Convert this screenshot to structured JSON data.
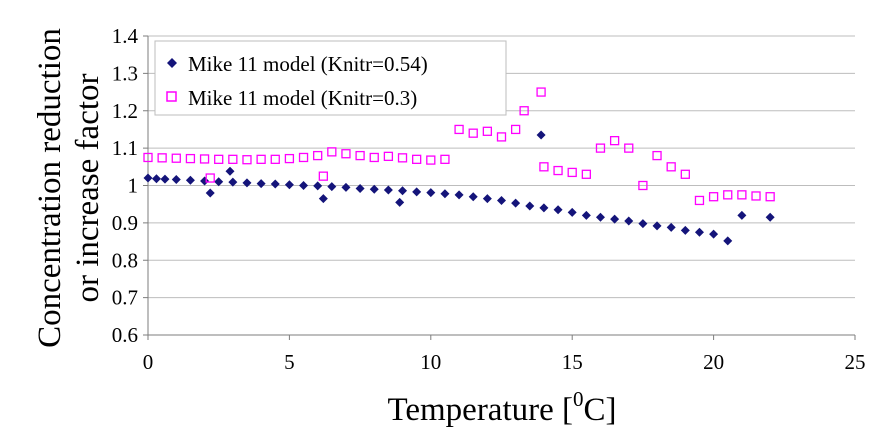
{
  "chart_data": {
    "type": "scatter",
    "title": "",
    "xlabel": "Temperature [",
    "xlabel_sup": "0",
    "xlabel_end": "C]",
    "ylabel_line1": "Concentration reduction",
    "ylabel_line2": "or  increase factor",
    "xlim": [
      0,
      25
    ],
    "ylim": [
      0.6,
      1.4
    ],
    "xticks": [
      0,
      5,
      10,
      15,
      20,
      25
    ],
    "yticks": [
      0.6,
      0.7,
      0.8,
      0.9,
      1,
      1.1,
      1.2,
      1.3,
      1.4
    ],
    "ytick_labels": [
      "0.6",
      "0.7",
      "0.8",
      "0.9",
      "1",
      "1.1",
      "1.2",
      "1.3",
      "1.4"
    ],
    "grid": "horizontal",
    "legend_position": "top-left",
    "series": [
      {
        "name": "Mike 11 model (Knitr=0.54)",
        "marker": "diamond",
        "color": "#14147a",
        "points": [
          [
            0,
            1.02
          ],
          [
            0.3,
            1.018
          ],
          [
            0.6,
            1.017
          ],
          [
            1,
            1.016
          ],
          [
            1.5,
            1.014
          ],
          [
            2,
            1.012
          ],
          [
            2.2,
            0.98
          ],
          [
            2.5,
            1.01
          ],
          [
            2.9,
            1.038
          ],
          [
            3,
            1.009
          ],
          [
            3.5,
            1.007
          ],
          [
            4,
            1.005
          ],
          [
            4.5,
            1.004
          ],
          [
            5,
            1.002
          ],
          [
            5.5,
            1.0
          ],
          [
            6,
            0.999
          ],
          [
            6.2,
            0.965
          ],
          [
            6.5,
            0.997
          ],
          [
            7,
            0.995
          ],
          [
            7.5,
            0.992
          ],
          [
            8,
            0.99
          ],
          [
            8.5,
            0.988
          ],
          [
            8.9,
            0.955
          ],
          [
            9,
            0.986
          ],
          [
            9.5,
            0.983
          ],
          [
            10,
            0.981
          ],
          [
            10.5,
            0.978
          ],
          [
            11,
            0.975
          ],
          [
            11.5,
            0.97
          ],
          [
            12,
            0.965
          ],
          [
            12.5,
            0.96
          ],
          [
            13,
            0.953
          ],
          [
            13.5,
            0.945
          ],
          [
            13.9,
            1.135
          ],
          [
            14,
            0.94
          ],
          [
            14.5,
            0.935
          ],
          [
            15,
            0.928
          ],
          [
            15.5,
            0.92
          ],
          [
            16,
            0.915
          ],
          [
            16.5,
            0.91
          ],
          [
            17,
            0.905
          ],
          [
            17.5,
            0.898
          ],
          [
            18,
            0.892
          ],
          [
            18.5,
            0.888
          ],
          [
            19,
            0.88
          ],
          [
            19.5,
            0.875
          ],
          [
            20,
            0.87
          ],
          [
            20.5,
            0.852
          ],
          [
            21,
            0.92
          ],
          [
            22,
            0.915
          ]
        ]
      },
      {
        "name": "Mike 11 model (Knitr=0.3)",
        "marker": "square",
        "color": "#ff00ff",
        "points": [
          [
            0,
            1.075
          ],
          [
            0.5,
            1.074
          ],
          [
            1,
            1.073
          ],
          [
            1.5,
            1.072
          ],
          [
            2,
            1.071
          ],
          [
            2.2,
            1.02
          ],
          [
            2.5,
            1.07
          ],
          [
            3,
            1.07
          ],
          [
            3.5,
            1.069
          ],
          [
            4,
            1.07
          ],
          [
            4.5,
            1.07
          ],
          [
            5,
            1.072
          ],
          [
            5.5,
            1.075
          ],
          [
            6,
            1.08
          ],
          [
            6.2,
            1.025
          ],
          [
            6.5,
            1.09
          ],
          [
            7,
            1.085
          ],
          [
            7.5,
            1.08
          ],
          [
            8,
            1.075
          ],
          [
            8.5,
            1.078
          ],
          [
            9,
            1.074
          ],
          [
            9.5,
            1.07
          ],
          [
            10,
            1.068
          ],
          [
            10.5,
            1.07
          ],
          [
            11,
            1.15
          ],
          [
            11.5,
            1.14
          ],
          [
            12,
            1.145
          ],
          [
            12.5,
            1.13
          ],
          [
            13,
            1.15
          ],
          [
            13.3,
            1.2
          ],
          [
            13.9,
            1.25
          ],
          [
            14,
            1.05
          ],
          [
            14.5,
            1.04
          ],
          [
            15,
            1.035
          ],
          [
            15.5,
            1.03
          ],
          [
            16,
            1.1
          ],
          [
            16.5,
            1.12
          ],
          [
            17,
            1.1
          ],
          [
            17.5,
            1.0
          ],
          [
            18,
            1.08
          ],
          [
            18.5,
            1.05
          ],
          [
            19,
            1.03
          ],
          [
            19.5,
            0.96
          ],
          [
            20,
            0.97
          ],
          [
            20.5,
            0.975
          ],
          [
            21,
            0.975
          ],
          [
            21.5,
            0.972
          ],
          [
            22,
            0.97
          ]
        ]
      }
    ]
  }
}
